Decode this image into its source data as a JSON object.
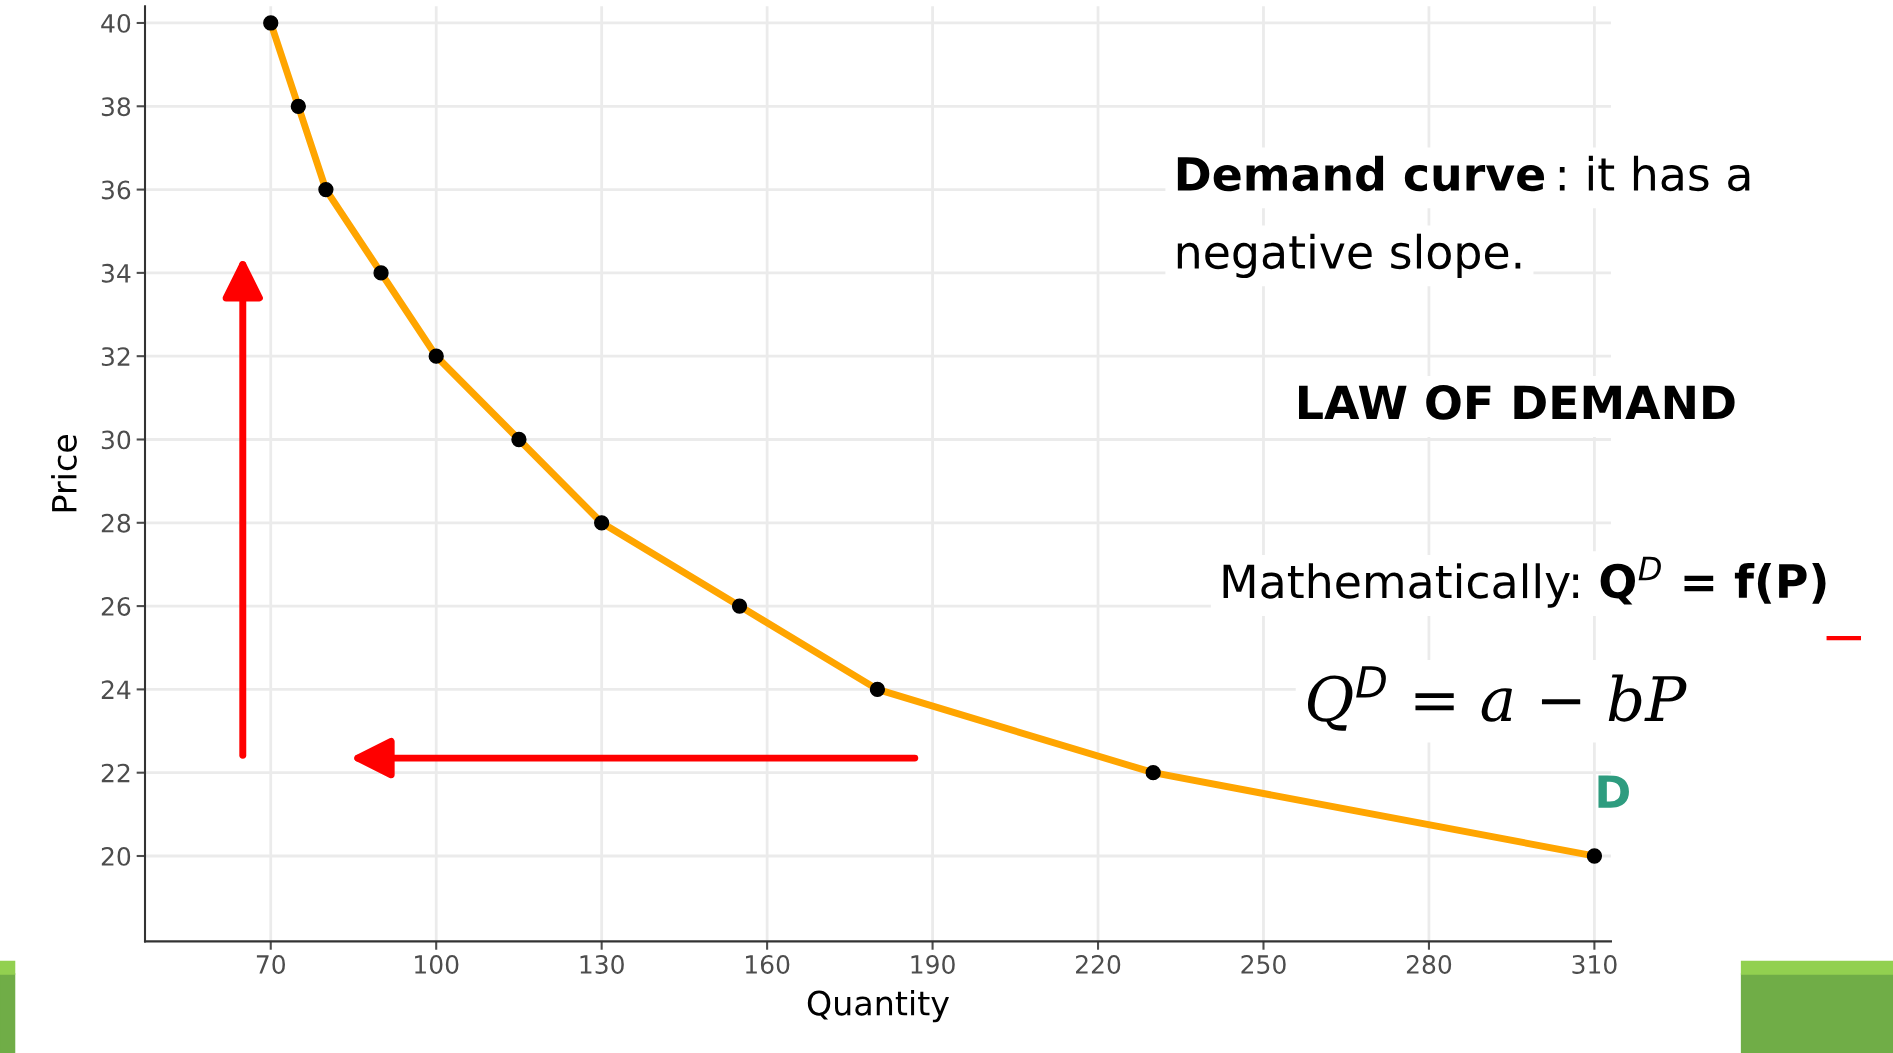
{
  "chart_data": {
    "type": "line",
    "xlabel": "Quantity",
    "ylabel": "Price",
    "x": [
      70,
      75,
      80,
      90,
      100,
      115,
      130,
      155,
      180,
      230,
      310
    ],
    "series": [
      {
        "color": "#ffa500",
        "values": [
          40,
          38,
          36,
          34,
          32,
          30,
          28,
          26,
          24,
          22,
          20
        ]
      }
    ],
    "marker": "circle",
    "line_style": "solid",
    "grid": true,
    "xlim": [
      47.2,
      313
    ],
    "ylim": [
      17.95,
      40.4
    ],
    "xticks": [
      70,
      100,
      130,
      160,
      190,
      220,
      250,
      280,
      310
    ],
    "yticks": [
      20,
      22,
      24,
      26,
      28,
      30,
      32,
      34,
      36,
      38,
      40
    ],
    "annotations": [
      "Demand curve",
      ": it has a",
      "negative slope.",
      "LAW OF DEMAND",
      "Mathematically: ",
      "Q$^{D}$ = f(P)",
      "Q$^{D}$ = a − bP",
      {
        "text": "D",
        "x": 310,
        "y": 20
      }
    ]
  }
}
